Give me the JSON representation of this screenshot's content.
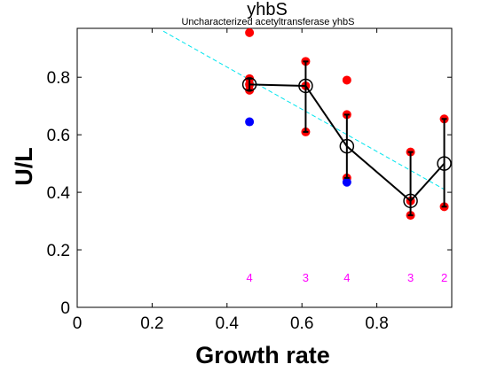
{
  "chart_data": {
    "type": "scatter",
    "title": "yhbS",
    "subtitle": "Uncharacterized acetyltransferase yhbS",
    "xlabel": "Growth rate",
    "ylabel": "U/L",
    "xlim": [
      0,
      1.0
    ],
    "ylim": [
      0,
      0.97
    ],
    "xticks": [
      "0",
      "0.2",
      "0.4",
      "0.6",
      "0.8"
    ],
    "yticks": [
      "0",
      "0.2",
      "0.4",
      "0.6",
      "0.8"
    ],
    "grid": false,
    "trend_line": {
      "color": "#00e5ee",
      "style": "dashed",
      "x": [
        0.23,
        0.98
      ],
      "y": [
        0.96,
        0.41
      ]
    },
    "groups": [
      {
        "x": 0.46,
        "mean": 0.775,
        "low": 0.755,
        "high": 0.795,
        "count": "4",
        "red_points": [
          0.955,
          0.795,
          0.775,
          0.755
        ],
        "blue_points": [
          0.645
        ]
      },
      {
        "x": 0.61,
        "mean": 0.77,
        "low": 0.61,
        "high": 0.855,
        "count": "3",
        "red_points": [
          0.855,
          0.77,
          0.61
        ],
        "blue_points": []
      },
      {
        "x": 0.72,
        "mean": 0.56,
        "low": 0.45,
        "high": 0.67,
        "count": "4",
        "red_points": [
          0.79,
          0.67,
          0.45
        ],
        "blue_points": [
          0.435
        ]
      },
      {
        "x": 0.89,
        "mean": 0.37,
        "low": 0.32,
        "high": 0.54,
        "count": "3",
        "red_points": [
          0.54,
          0.37,
          0.32
        ],
        "blue_points": []
      },
      {
        "x": 0.98,
        "mean": 0.5,
        "low": 0.35,
        "high": 0.655,
        "count": "2",
        "red_points": [
          0.655,
          0.35
        ],
        "blue_points": []
      }
    ],
    "colors": {
      "red": "#ff0000",
      "blue": "#0000ff",
      "line": "#000000",
      "count": "#ff00ff"
    }
  }
}
